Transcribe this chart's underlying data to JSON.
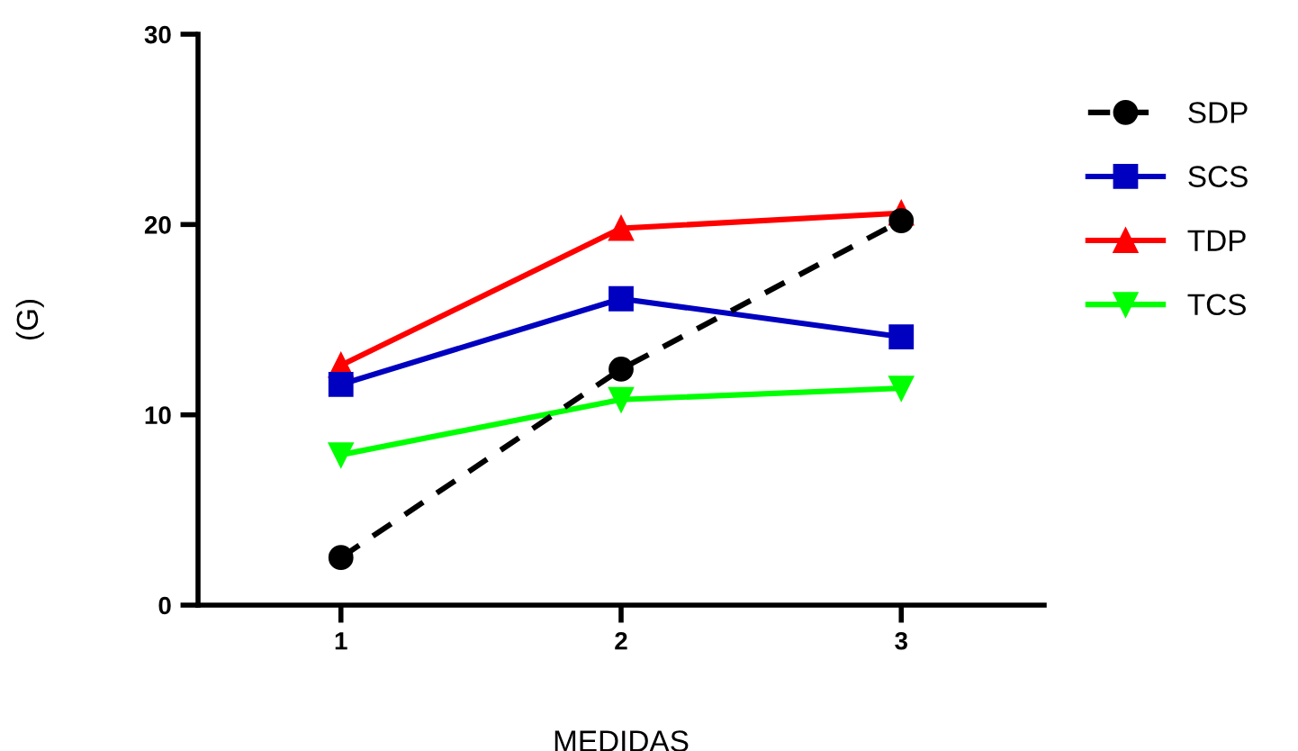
{
  "chart_data": {
    "type": "line",
    "xlabel": "MEDIDAS",
    "ylabel": "(G)",
    "categories": [
      "1",
      "2",
      "3"
    ],
    "ylim": [
      0,
      30
    ],
    "yticks": [
      0,
      10,
      20,
      30
    ],
    "grid": false,
    "legend": "right",
    "series": [
      {
        "name": "SDP",
        "color": "#000000",
        "values": [
          2.5,
          12.4,
          20.2
        ],
        "marker": "circle",
        "line_style": "dashed"
      },
      {
        "name": "SCS",
        "color": "#0000c0",
        "values": [
          11.6,
          16.1,
          14.1
        ],
        "marker": "square",
        "line_style": "solid"
      },
      {
        "name": "TDP",
        "color": "#ff0000",
        "values": [
          12.6,
          19.8,
          20.6
        ],
        "marker": "triangle",
        "line_style": "solid"
      },
      {
        "name": "TCS",
        "color": "#00ff00",
        "values": [
          7.9,
          10.8,
          11.4
        ],
        "marker": "triangle_down",
        "line_style": "solid"
      }
    ]
  }
}
